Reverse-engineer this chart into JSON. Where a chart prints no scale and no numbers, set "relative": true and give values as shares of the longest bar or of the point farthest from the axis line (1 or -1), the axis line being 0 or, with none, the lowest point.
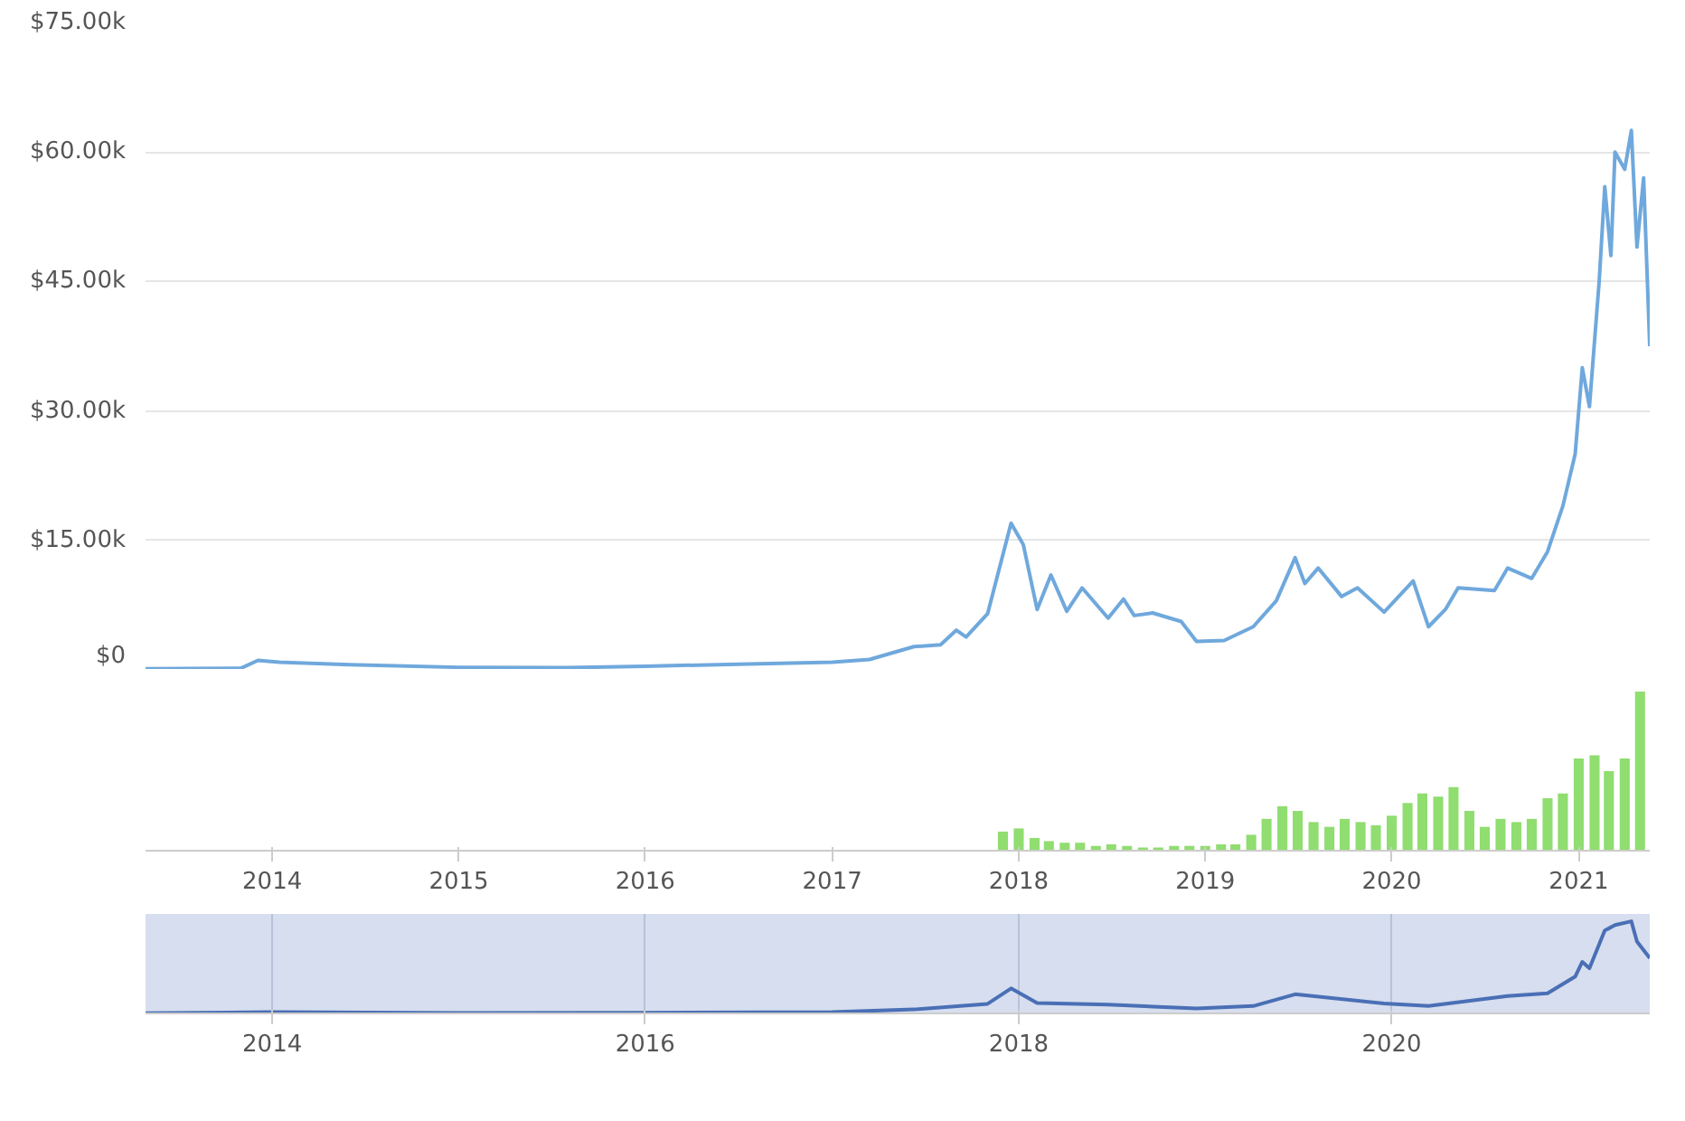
{
  "chart_data": [
    {
      "type": "line",
      "xlim": [
        "2013-04-28",
        "2021-05-20"
      ],
      "ylim": [
        0,
        75000
      ],
      "yticks": [
        {
          "value": 0,
          "label": "$0"
        },
        {
          "value": 15000,
          "label": "$15.00k"
        },
        {
          "value": 30000,
          "label": "$30.00k"
        },
        {
          "value": 45000,
          "label": "$45.00k"
        },
        {
          "value": 60000,
          "label": "$60.00k"
        },
        {
          "value": 75000,
          "label": "$75.00k"
        }
      ],
      "grid": "y",
      "tick_labels": "y",
      "x": [
        "2013-04-28",
        "2013-11-01",
        "2013-12-04",
        "2014-01-15",
        "2014-06-01",
        "2015-01-01",
        "2015-08-01",
        "2016-01-01",
        "2016-07-01",
        "2017-01-01",
        "2017-03-15",
        "2017-06-10",
        "2017-08-01",
        "2017-09-01",
        "2017-09-20",
        "2017-11-01",
        "2017-12-17",
        "2018-01-10",
        "2018-02-06",
        "2018-03-05",
        "2018-04-05",
        "2018-05-05",
        "2018-06-25",
        "2018-07-25",
        "2018-08-15",
        "2018-09-20",
        "2018-11-15",
        "2018-12-15",
        "2019-02-07",
        "2019-04-05",
        "2019-05-20",
        "2019-06-26",
        "2019-07-15",
        "2019-08-10",
        "2019-09-25",
        "2019-10-26",
        "2019-12-17",
        "2020-02-12",
        "2020-03-13",
        "2020-04-15",
        "2020-05-10",
        "2020-07-20",
        "2020-08-15",
        "2020-10-01",
        "2020-11-01",
        "2020-12-01",
        "2020-12-25",
        "2021-01-08",
        "2021-01-22",
        "2021-02-10",
        "2021-02-21",
        "2021-03-05",
        "2021-03-13",
        "2021-04-01",
        "2021-04-14",
        "2021-04-25",
        "2021-05-08",
        "2021-05-20"
      ],
      "series": [
        {
          "color": "#6fa8dc",
          "values": [
            130,
            200,
            1100,
            900,
            600,
            300,
            250,
            430,
            650,
            900,
            1200,
            2700,
            2900,
            4600,
            3800,
            6500,
            17000,
            14500,
            7000,
            11000,
            6800,
            9500,
            6000,
            8200,
            6300,
            6600,
            5600,
            3300,
            3400,
            5000,
            8000,
            13000,
            10000,
            11800,
            8500,
            9500,
            6700,
            10300,
            5000,
            7000,
            9500,
            9200,
            11800,
            10600,
            13700,
            19000,
            25000,
            35000,
            30500,
            45000,
            56000,
            48000,
            60000,
            58000,
            62500,
            49000,
            57000,
            37500
          ]
        }
      ]
    },
    {
      "type": "bar",
      "relative": true,
      "xlim": [
        "2013-04-28",
        "2021-05-20"
      ],
      "xticks": [
        "2014",
        "2015",
        "2016",
        "2017",
        "2018",
        "2019",
        "2020",
        "2021"
      ],
      "tick_labels": "x",
      "x": [
        "2017-12",
        "2018-01",
        "2018-02",
        "2018-03",
        "2018-04",
        "2018-05",
        "2018-06",
        "2018-07",
        "2018-08",
        "2018-09",
        "2018-10",
        "2018-11",
        "2018-12",
        "2019-01",
        "2019-02",
        "2019-03",
        "2019-04",
        "2019-05",
        "2019-06",
        "2019-07",
        "2019-08",
        "2019-09",
        "2019-10",
        "2019-11",
        "2019-12",
        "2020-01",
        "2020-02",
        "2020-03",
        "2020-04",
        "2020-05",
        "2020-06",
        "2020-07",
        "2020-08",
        "2020-09",
        "2020-10",
        "2020-11",
        "2020-12",
        "2021-01",
        "2021-02",
        "2021-03",
        "2021-04",
        "2021-05"
      ],
      "series": [
        {
          "color": "#90dd70",
          "values": [
            0.12,
            0.14,
            0.08,
            0.06,
            0.05,
            0.05,
            0.03,
            0.04,
            0.03,
            0.02,
            0.02,
            0.03,
            0.03,
            0.03,
            0.04,
            0.04,
            0.1,
            0.2,
            0.28,
            0.25,
            0.18,
            0.15,
            0.2,
            0.18,
            0.16,
            0.22,
            0.3,
            0.36,
            0.34,
            0.4,
            0.25,
            0.15,
            0.2,
            0.18,
            0.2,
            0.33,
            0.36,
            0.58,
            0.6,
            0.5,
            0.58,
            1.0
          ]
        }
      ]
    },
    {
      "type": "line",
      "relative": true,
      "xlim": [
        "2013-04-28",
        "2021-05-20"
      ],
      "xticks": [
        "2014",
        "2016",
        "2018",
        "2020"
      ],
      "grid": "x",
      "tick_labels": "x",
      "x": [
        "2013-04-28",
        "2014-01-01",
        "2015-01-01",
        "2016-01-01",
        "2017-01-01",
        "2017-06-10",
        "2017-11-01",
        "2017-12-17",
        "2018-02-06",
        "2018-06-25",
        "2018-12-15",
        "2019-04-05",
        "2019-06-26",
        "2019-12-17",
        "2020-03-13",
        "2020-08-15",
        "2020-11-01",
        "2020-12-25",
        "2021-01-08",
        "2021-01-22",
        "2021-02-21",
        "2021-03-13",
        "2021-04-14",
        "2021-04-25",
        "2021-05-20"
      ],
      "series": [
        {
          "color": "#4a6fb5",
          "values": [
            0.002,
            0.014,
            0.005,
            0.007,
            0.014,
            0.043,
            0.104,
            0.272,
            0.112,
            0.096,
            0.053,
            0.08,
            0.208,
            0.107,
            0.08,
            0.189,
            0.219,
            0.4,
            0.56,
            0.49,
            0.9,
            0.96,
            1.0,
            0.78,
            0.6
          ]
        }
      ]
    }
  ]
}
